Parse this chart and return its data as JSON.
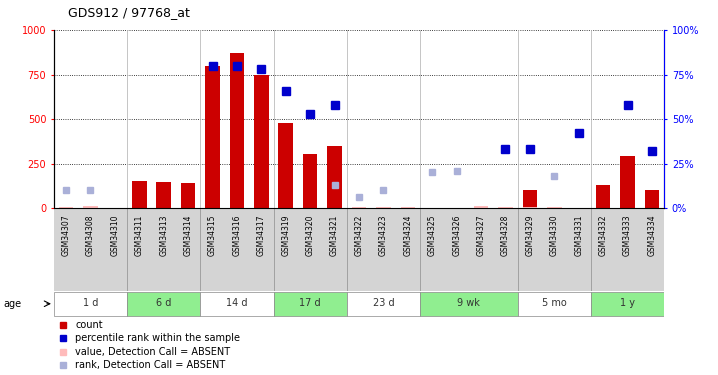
{
  "title": "GDS912 / 97768_at",
  "samples": [
    "GSM34307",
    "GSM34308",
    "GSM34310",
    "GSM34311",
    "GSM34313",
    "GSM34314",
    "GSM34315",
    "GSM34316",
    "GSM34317",
    "GSM34319",
    "GSM34320",
    "GSM34321",
    "GSM34322",
    "GSM34323",
    "GSM34324",
    "GSM34325",
    "GSM34326",
    "GSM34327",
    "GSM34328",
    "GSM34329",
    "GSM34330",
    "GSM34331",
    "GSM34332",
    "GSM34333",
    "GSM34334"
  ],
  "count": [
    null,
    null,
    null,
    155,
    148,
    140,
    800,
    870,
    750,
    480,
    305,
    350,
    null,
    null,
    null,
    null,
    null,
    null,
    null,
    100,
    null,
    null,
    130,
    290,
    100
  ],
  "percentile_rank": [
    null,
    null,
    null,
    null,
    null,
    null,
    80,
    80,
    78,
    66,
    53,
    58,
    null,
    null,
    null,
    null,
    null,
    null,
    33,
    33,
    null,
    42,
    null,
    58,
    32
  ],
  "absent_value": [
    8,
    10,
    3,
    null,
    null,
    null,
    null,
    null,
    null,
    null,
    null,
    null,
    5,
    8,
    6,
    null,
    null,
    10,
    6,
    8,
    5,
    null,
    null,
    null,
    null
  ],
  "absent_rank": [
    10,
    10,
    null,
    null,
    null,
    null,
    null,
    null,
    null,
    null,
    null,
    13,
    6,
    10,
    null,
    20,
    21,
    null,
    null,
    null,
    18,
    null,
    null,
    null,
    null
  ],
  "age_groups": [
    {
      "label": "1 d",
      "start": 0,
      "end": 3,
      "green": false
    },
    {
      "label": "6 d",
      "start": 3,
      "end": 6,
      "green": true
    },
    {
      "label": "14 d",
      "start": 6,
      "end": 9,
      "green": false
    },
    {
      "label": "17 d",
      "start": 9,
      "end": 12,
      "green": true
    },
    {
      "label": "23 d",
      "start": 12,
      "end": 15,
      "green": false
    },
    {
      "label": "9 wk",
      "start": 15,
      "end": 19,
      "green": true
    },
    {
      "label": "5 mo",
      "start": 19,
      "end": 22,
      "green": false
    },
    {
      "label": "1 y",
      "start": 22,
      "end": 25,
      "green": true
    }
  ],
  "ylim_left": [
    0,
    1000
  ],
  "ylim_right": [
    0,
    100
  ],
  "yticks_left": [
    0,
    250,
    500,
    750,
    1000
  ],
  "yticks_right": [
    0,
    25,
    50,
    75,
    100
  ],
  "bar_color": "#cc0000",
  "rank_color": "#0000cc",
  "absent_val_color": "#ffbbbb",
  "absent_rank_color": "#aab0d8",
  "label_bg": "#d0d0d0",
  "green_color": "#90ee90",
  "white_color": "#e8ffe8",
  "legend_items": [
    {
      "color": "#cc0000",
      "label": "count"
    },
    {
      "color": "#0000cc",
      "label": "percentile rank within the sample"
    },
    {
      "color": "#ffbbbb",
      "label": "value, Detection Call = ABSENT"
    },
    {
      "color": "#aab0d8",
      "label": "rank, Detection Call = ABSENT"
    }
  ]
}
